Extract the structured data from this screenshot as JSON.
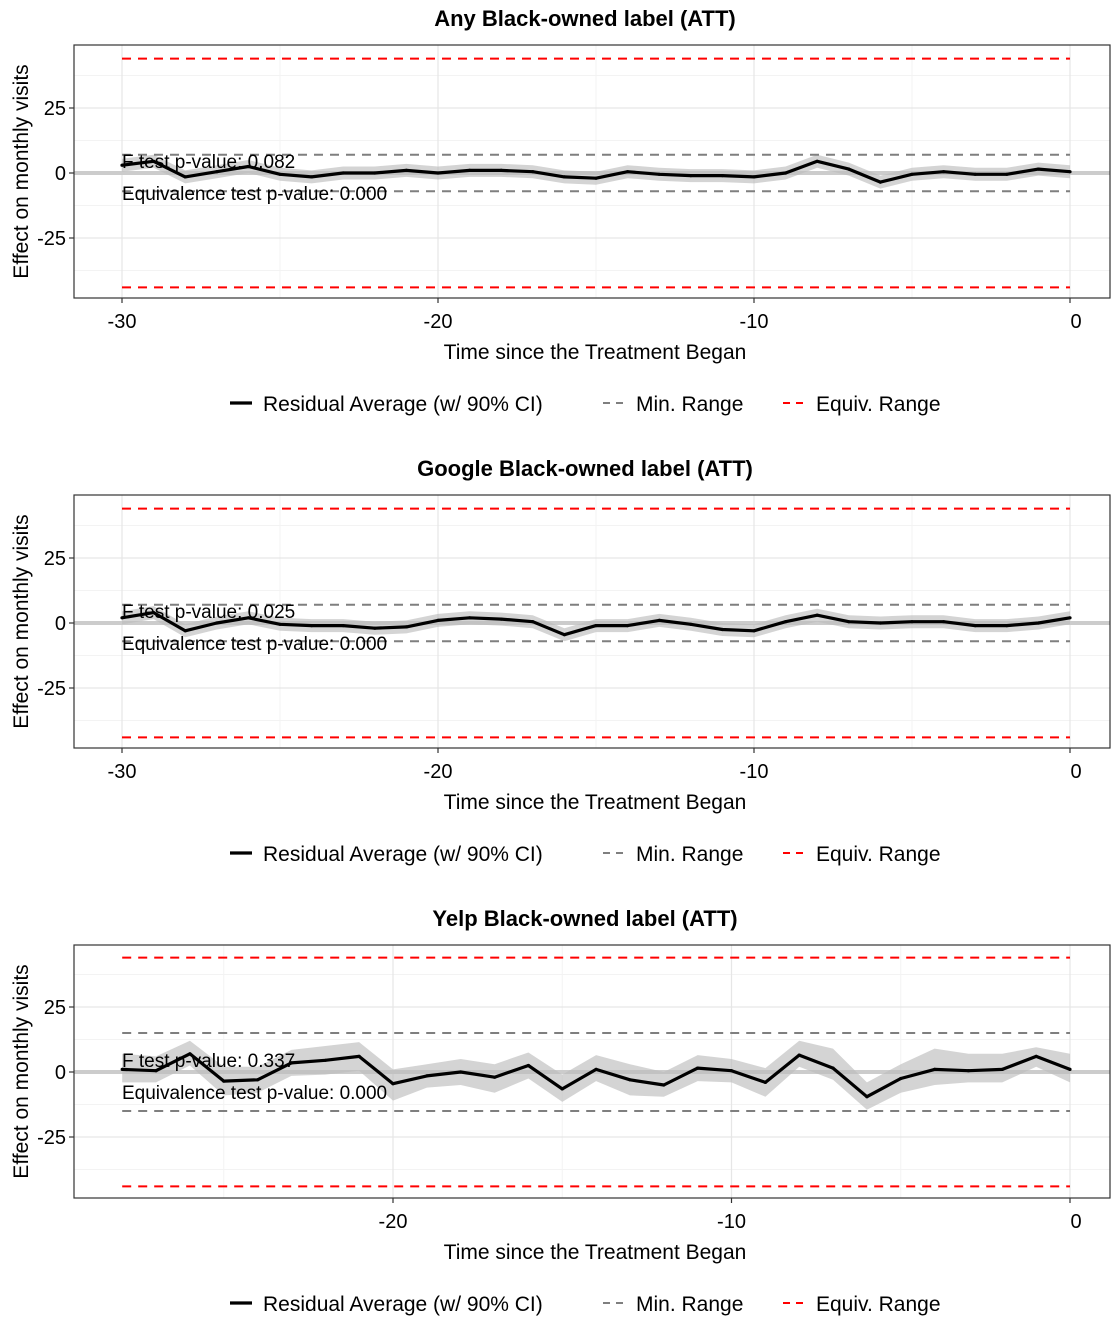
{
  "chart_data": [
    {
      "type": "line",
      "title": "Any Black-owned label (ATT)",
      "xlabel": "Time since the Treatment Began",
      "ylabel": "Effect on monthly visits",
      "xlim": [
        -31.5,
        1.2
      ],
      "ylim": [
        -48,
        48
      ],
      "xticks": [
        -30,
        -20,
        -10,
        0
      ],
      "yticks": [
        -25,
        0,
        25
      ],
      "grid": true,
      "min_range": 7,
      "equiv_range": 44,
      "annotations": [
        "F test p-value: 0.082",
        "Equivalence test p-value: 0.000"
      ],
      "legend": [
        "Residual Average (w/ 90% CI)",
        "Min. Range",
        "Equiv. Range"
      ],
      "legend_position": "bottom",
      "series": [
        {
          "name": "Residual Average (w/ 90% CI)",
          "x": [
            -30,
            -29,
            -28,
            -27,
            -26,
            -25,
            -24,
            -23,
            -22,
            -21,
            -20,
            -19,
            -18,
            -17,
            -16,
            -15,
            -14,
            -13,
            -12,
            -11,
            -10,
            -9,
            -8,
            -7,
            -6,
            -5,
            -4,
            -3,
            -2,
            -1,
            0
          ],
          "y": [
            3,
            4.5,
            -1.5,
            0.5,
            2.5,
            -0.5,
            -1.5,
            0,
            0,
            1,
            0,
            1,
            1,
            0.5,
            -1.5,
            -2,
            0.5,
            -0.5,
            -1,
            -1,
            -1.5,
            0,
            4.5,
            1.5,
            -3.5,
            -0.5,
            0.5,
            -0.5,
            -0.5,
            1.5,
            0.5
          ],
          "ci_lower": [
            0.5,
            2,
            -4,
            -2,
            0,
            -3,
            -4,
            -2.5,
            -2.5,
            -1.5,
            -2.5,
            -1.5,
            -1.5,
            -2,
            -4,
            -4.5,
            -2,
            -3,
            -3.5,
            -3.5,
            -4,
            -2.5,
            2,
            -1,
            -6,
            -3,
            -2,
            -3,
            -3,
            -1,
            -2
          ],
          "ci_upper": [
            5.5,
            7,
            1,
            3,
            5,
            2,
            1,
            2.5,
            2.5,
            3.5,
            2.5,
            3.5,
            3.5,
            3,
            1,
            0.5,
            3,
            2,
            1.5,
            1.5,
            1,
            2.5,
            7,
            4,
            -1,
            2,
            3,
            2,
            2,
            4,
            3
          ]
        }
      ]
    },
    {
      "type": "line",
      "title": "Google Black-owned label (ATT)",
      "xlabel": "Time since the Treatment Began",
      "ylabel": "Effect on monthly visits",
      "xlim": [
        -31.5,
        1.2
      ],
      "ylim": [
        -48,
        48
      ],
      "xticks": [
        -30,
        -20,
        -10,
        0
      ],
      "yticks": [
        -25,
        0,
        25
      ],
      "grid": true,
      "min_range": 7,
      "equiv_range": 44,
      "annotations": [
        "F test p-value: 0.025",
        "Equivalence test p-value: 0.000"
      ],
      "legend": [
        "Residual Average (w/ 90% CI)",
        "Min. Range",
        "Equiv. Range"
      ],
      "legend_position": "bottom",
      "series": [
        {
          "name": "Residual Average (w/ 90% CI)",
          "x": [
            -30,
            -29,
            -28,
            -27,
            -26,
            -25,
            -24,
            -23,
            -22,
            -21,
            -20,
            -19,
            -18,
            -17,
            -16,
            -15,
            -14,
            -13,
            -12,
            -11,
            -10,
            -9,
            -8,
            -7,
            -6,
            -5,
            -4,
            -3,
            -2,
            -1,
            0
          ],
          "y": [
            2,
            4,
            -3,
            0,
            2,
            -0.5,
            -1,
            -1,
            -2,
            -1.5,
            1,
            2,
            1.5,
            0.5,
            -4.5,
            -1,
            -1,
            1,
            -0.5,
            -2.5,
            -3,
            0.5,
            3,
            0.5,
            0,
            0.5,
            0.5,
            -1,
            -1,
            0,
            2
          ],
          "ci_lower": [
            -0.5,
            1.5,
            -5.5,
            -2.5,
            -0.5,
            -3,
            -3.5,
            -3.5,
            -4.5,
            -4,
            -1.5,
            -0.5,
            -1,
            -2,
            -7,
            -3.5,
            -3.5,
            -1.5,
            -3,
            -5,
            -5.5,
            -2,
            0.5,
            -2,
            -2.5,
            -2,
            -2,
            -3.5,
            -3.5,
            -2.5,
            -0.5
          ],
          "ci_upper": [
            4.5,
            6.5,
            -0.5,
            2.5,
            4.5,
            2,
            1.5,
            1.5,
            0.5,
            1,
            3.5,
            4.5,
            4,
            3,
            -2,
            1.5,
            1.5,
            3.5,
            2,
            0,
            -0.5,
            3,
            5.5,
            3,
            2.5,
            3,
            3,
            1.5,
            1.5,
            2.5,
            4.5
          ]
        }
      ]
    },
    {
      "type": "line",
      "title": "Yelp Black-owned label (ATT)",
      "xlabel": "Time since the Treatment Began",
      "ylabel": "Effect on monthly visits",
      "xlim": [
        -28.7,
        1.1
      ],
      "ylim": [
        -48,
        48
      ],
      "xticks": [
        -20,
        -10,
        0
      ],
      "yticks": [
        -25,
        0,
        25
      ],
      "grid": true,
      "min_range": 15,
      "equiv_range": 44,
      "annotations": [
        "F test p-value: 0.337",
        "Equivalence test p-value: 0.000"
      ],
      "legend": [
        "Residual Average (w/ 90% CI)",
        "Min. Range",
        "Equiv. Range"
      ],
      "legend_position": "bottom",
      "series": [
        {
          "name": "Residual Average (w/ 90% CI)",
          "x": [
            -28,
            -27,
            -26,
            -25,
            -24,
            -23,
            -22,
            -21,
            -20,
            -19,
            -18,
            -17,
            -16,
            -15,
            -14,
            -13,
            -12,
            -11,
            -10,
            -9,
            -8,
            -7,
            -6,
            -5,
            -4,
            -3,
            -2,
            -1,
            0
          ],
          "y": [
            1,
            0.5,
            7,
            -3.5,
            -3,
            3.5,
            4.5,
            6,
            -4.5,
            -1.5,
            0,
            -2,
            2.5,
            -6.5,
            1,
            -3,
            -5,
            1.5,
            0.5,
            -4,
            6.5,
            1.5,
            -9.5,
            -2.5,
            1,
            0.5,
            1,
            6,
            1
          ],
          "ci_lower": [
            -4,
            -4,
            2.5,
            -9,
            -8,
            -1.5,
            -1,
            0.5,
            -11,
            -6,
            -5,
            -8,
            -2.5,
            -11.5,
            -3.5,
            -9,
            -9.5,
            -3.5,
            -4,
            -9.5,
            2,
            -3,
            -14.5,
            -8,
            -5,
            -4,
            -4,
            2,
            -4
          ],
          "ci_upper": [
            7,
            6,
            12,
            2,
            2,
            8.5,
            10,
            11.5,
            1,
            3,
            5,
            3,
            7.5,
            -1,
            6.5,
            3,
            0,
            6.5,
            5,
            1.5,
            12,
            9,
            -4,
            3,
            9,
            7,
            7,
            9.5,
            7
          ]
        }
      ]
    }
  ]
}
